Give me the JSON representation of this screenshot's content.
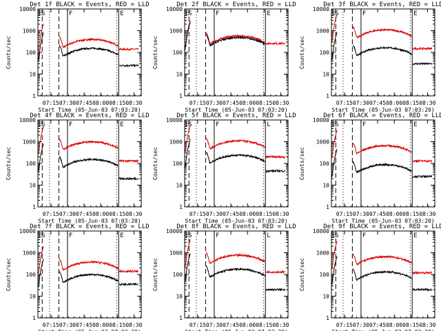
{
  "colors": {
    "events": "#000000",
    "lld": "#e00000",
    "axis": "#000000",
    "background": "#ffffff"
  },
  "chart_data": [
    {
      "type": "line",
      "title": "Det 1f BLACK = Events, RED = LLD",
      "xlabel": "Start Time (05-Jun-03 07:03:20)",
      "ylabel": "Counts/sec",
      "xlim": [
        7.055,
        8.61
      ],
      "ylim": [
        1,
        10000
      ],
      "yscale": "log",
      "xticks": [
        "07:15",
        "07:30",
        "07:45",
        "08:00",
        "08:15",
        "08:30"
      ],
      "yticklabels": [
        "1",
        "10",
        "100",
        "1000",
        "10000"
      ],
      "marker_labels": [
        "E",
        "S",
        "F",
        "E"
      ],
      "series": [
        {
          "name": "LLD",
          "color": "red",
          "base": 180,
          "flat": 140
        },
        {
          "name": "Events",
          "color": "black",
          "base": 70,
          "flat": 25
        }
      ]
    },
    {
      "type": "line",
      "title": "Det 2f BLACK = Events, RED = LLD",
      "xlabel": "Start Time (05-Jun-03 07:03:20)",
      "ylabel": "Counts/sec",
      "xlim": [
        7.055,
        8.61
      ],
      "ylim": [
        1,
        10000
      ],
      "yscale": "log",
      "xticks": [
        "07:15",
        "07:30",
        "07:45",
        "08:00",
        "08:15",
        "08:30"
      ],
      "yticklabels": [
        "1",
        "10",
        "100",
        "1000",
        "10000"
      ],
      "marker_labels": [
        "E",
        "S",
        "F",
        "E"
      ],
      "series": [
        {
          "name": "LLD",
          "color": "red",
          "base": 260,
          "flat": 260
        },
        {
          "name": "Events",
          "color": "black",
          "base": 220,
          "flat": 0
        }
      ]
    },
    {
      "type": "line",
      "title": "Det 3f BLACK = Events, RED = LLD",
      "xlabel": "Start Time (05-Jun-03 07:03:20)",
      "ylabel": "Counts/sec",
      "xlim": [
        7.055,
        8.61
      ],
      "ylim": [
        1,
        10000
      ],
      "yscale": "log",
      "xticks": [
        "07:15",
        "07:30",
        "07:45",
        "08:00",
        "08:15",
        "08:30"
      ],
      "yticklabels": [
        "1",
        "10",
        "100",
        "1000",
        "10000"
      ],
      "marker_labels": [
        "E",
        "S",
        "F",
        "E"
      ],
      "series": [
        {
          "name": "LLD",
          "color": "red",
          "base": 500,
          "flat": 150
        },
        {
          "name": "Events",
          "color": "black",
          "base": 75,
          "flat": 30
        }
      ]
    },
    {
      "type": "line",
      "title": "Det 4f BLACK = Events, RED = LLD",
      "xlabel": "Start Time (05-Jun-03 07:03:20)",
      "ylabel": "Counts/sec",
      "xlim": [
        7.055,
        8.61
      ],
      "ylim": [
        1,
        10000
      ],
      "yscale": "log",
      "xticks": [
        "07:15",
        "07:30",
        "07:45",
        "08:00",
        "08:15",
        "08:30"
      ],
      "yticklabels": [
        "1",
        "10",
        "100",
        "1000",
        "10000"
      ],
      "marker_labels": [
        "E",
        "S",
        "F",
        "E"
      ],
      "series": [
        {
          "name": "LLD",
          "color": "red",
          "base": 450,
          "flat": 130
        },
        {
          "name": "Events",
          "color": "black",
          "base": 70,
          "flat": 20
        }
      ]
    },
    {
      "type": "line",
      "title": "Det 5f BLACK = Events, RED = LLD",
      "xlabel": "Start Time (05-Jun-03 07:03:20)",
      "ylabel": "Counts/sec",
      "xlim": [
        7.055,
        8.61
      ],
      "ylim": [
        1,
        10000
      ],
      "yscale": "log",
      "xticks": [
        "07:15",
        "07:30",
        "07:45",
        "08:00",
        "08:15",
        "08:30"
      ],
      "yticklabels": [
        "1",
        "10",
        "100",
        "1000",
        "10000"
      ],
      "marker_labels": [
        "E",
        "S",
        "F",
        "L"
      ],
      "series": [
        {
          "name": "LLD",
          "color": "red",
          "base": 500,
          "flat": 200
        },
        {
          "name": "Events",
          "color": "black",
          "base": 110,
          "flat": 45
        }
      ]
    },
    {
      "type": "line",
      "title": "Det 6f BLACK = Events, RED = LLD",
      "xlabel": "Start Time (05-Jun-03 07:03:20)",
      "ylabel": "Counts/sec",
      "xlim": [
        7.055,
        8.61
      ],
      "ylim": [
        1,
        10000
      ],
      "yscale": "log",
      "xticks": [
        "07:15",
        "07:30",
        "07:45",
        "08:00",
        "08:15",
        "08:30"
      ],
      "yticklabels": [
        "1",
        "10",
        "100",
        "1000",
        "10000"
      ],
      "marker_labels": [
        "E",
        "S",
        "F",
        "E"
      ],
      "series": [
        {
          "name": "LLD",
          "color": "red",
          "base": 300,
          "flat": 130
        },
        {
          "name": "Events",
          "color": "black",
          "base": 40,
          "flat": 25
        }
      ]
    },
    {
      "type": "line",
      "title": "Det 7f BLACK = Events, RED = LLD",
      "xlabel": "Start Time (05-Jun-03 07:03:20)",
      "ylabel": "Counts/sec",
      "xlim": [
        7.055,
        8.61
      ],
      "ylim": [
        1,
        10000
      ],
      "yscale": "log",
      "xticks": [
        "07:15",
        "07:30",
        "07:45",
        "08:00",
        "08:15",
        "08:30"
      ],
      "yticklabels": [
        "1",
        "10",
        "100",
        "1000",
        "10000"
      ],
      "marker_labels": [
        "E",
        "S",
        "F",
        "E"
      ],
      "series": [
        {
          "name": "LLD",
          "color": "red",
          "base": 170,
          "flat": 140
        },
        {
          "name": "Events",
          "color": "black",
          "base": 45,
          "flat": 35
        }
      ]
    },
    {
      "type": "line",
      "title": "Det 8f BLACK = Events, RED = LLD",
      "xlabel": "Start Time (05-Jun-03 07:03:20)",
      "ylabel": "Counts/sec",
      "xlim": [
        7.055,
        8.61
      ],
      "ylim": [
        1,
        10000
      ],
      "yscale": "log",
      "xticks": [
        "07:15",
        "07:30",
        "07:45",
        "08:00",
        "08:15",
        "08:30"
      ],
      "yticklabels": [
        "1",
        "10",
        "100",
        "1000",
        "10000"
      ],
      "marker_labels": [
        "E",
        "S",
        "F",
        "L"
      ],
      "series": [
        {
          "name": "LLD",
          "color": "red",
          "base": 350,
          "flat": 130
        },
        {
          "name": "Events",
          "color": "black",
          "base": 80,
          "flat": 20
        }
      ]
    },
    {
      "type": "line",
      "title": "Det 9f BLACK = Events, RED = LLD",
      "xlabel": "Start Time (05-Jun-03 07:03:20)",
      "ylabel": "Counts/sec",
      "xlim": [
        7.055,
        8.61
      ],
      "ylim": [
        1,
        10000
      ],
      "yscale": "log",
      "xticks": [
        "07:15",
        "07:30",
        "07:45",
        "08:00",
        "08:15",
        "08:30"
      ],
      "yticklabels": [
        "1",
        "10",
        "100",
        "1000",
        "10000"
      ],
      "marker_labels": [
        "E",
        "S",
        "F",
        "E"
      ],
      "series": [
        {
          "name": "LLD",
          "color": "red",
          "base": 300,
          "flat": 120
        },
        {
          "name": "Events",
          "color": "black",
          "base": 60,
          "flat": 20
        }
      ]
    }
  ]
}
